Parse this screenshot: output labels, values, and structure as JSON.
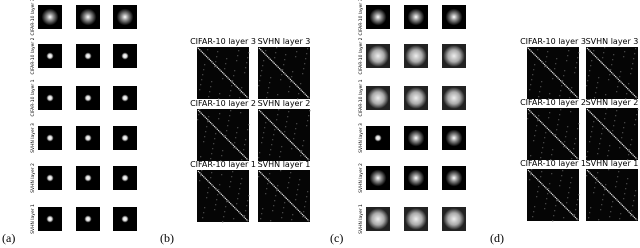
{
  "panels": [
    {
      "label": "(a)",
      "rows": [
        "CIFAR-10 layer 3",
        "CIFAR-10 layer 2",
        "CIFAR-10 layer 1",
        "SVHN layer 3",
        "SVHN layer 2",
        "SVHN layer 1"
      ]
    },
    {
      "label": "(b)",
      "titles": [
        [
          "CIFAR-10 layer 3",
          "SVHN layer 3"
        ],
        [
          "CIFAR-10 layer 2",
          "SVHN layer 2"
        ],
        [
          "CIFAR-10 layer 1",
          "SVHN layer 1"
        ]
      ]
    },
    {
      "label": "(c)",
      "rows": [
        "CIFAR-10 layer 3",
        "CIFAR-10 layer 2",
        "CIFAR-10 layer 1",
        "SVHN layer 3",
        "SVHN layer 2",
        "SVHN layer 1"
      ]
    },
    {
      "label": "(d)",
      "titles": [
        [
          "CIFAR-10 layer 3",
          "SVHN layer 3"
        ],
        [
          "CIFAR-10 layer 2",
          "SVHN layer 2"
        ],
        [
          "CIFAR-10 layer 1",
          "SVHN layer 1"
        ]
      ]
    }
  ]
}
